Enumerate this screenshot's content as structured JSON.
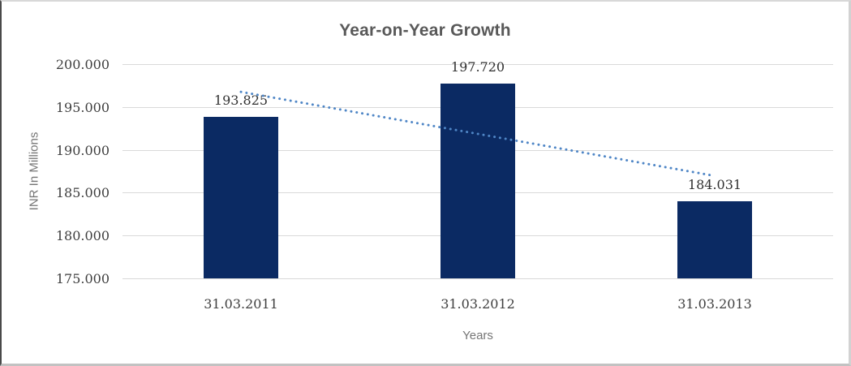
{
  "chart_data": {
    "type": "bar",
    "title": "Year-on-Year Growth",
    "xlabel": "Years",
    "ylabel": "INR In Millions",
    "categories": [
      "31.03.2011",
      "31.03.2012",
      "31.03.2013"
    ],
    "values": [
      193.825,
      197.72,
      184.031
    ],
    "data_labels": [
      "193.825",
      "197.720",
      "184.031"
    ],
    "ylim": [
      175,
      200
    ],
    "yticks": [
      {
        "value": 200,
        "label": "200.000"
      },
      {
        "value": 195,
        "label": "195.000"
      },
      {
        "value": 190,
        "label": "190.000"
      },
      {
        "value": 185,
        "label": "185.000"
      },
      {
        "value": 180,
        "label": "180.000"
      },
      {
        "value": 175,
        "label": "175.000"
      }
    ],
    "grid": true,
    "legend": "none",
    "trendline": {
      "type": "linear",
      "style": "dotted",
      "start_value": 196.76,
      "end_value": 186.96
    },
    "colors": {
      "bar": "#0b2a63",
      "trendline": "#4f86c6",
      "gridline": "#d9d9d9",
      "title_text": "#595959",
      "axis_title_text": "#757575",
      "tick_text": "#3f3f3f"
    }
  }
}
